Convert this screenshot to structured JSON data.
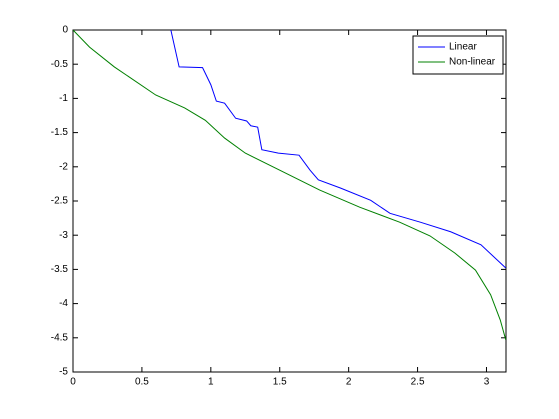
{
  "chart_data": {
    "type": "line",
    "series": [
      {
        "name": "Linear",
        "color": "#0000ff",
        "x": [
          0.71,
          0.77,
          0.94,
          1.0,
          1.04,
          1.1,
          1.18,
          1.26,
          1.29,
          1.34,
          1.37,
          1.49,
          1.64,
          1.72,
          1.78,
          1.94,
          2.16,
          2.3,
          2.52,
          2.74,
          2.96,
          3.14
        ],
        "values": [
          0,
          -0.54,
          -0.55,
          -0.8,
          -1.04,
          -1.07,
          -1.29,
          -1.33,
          -1.4,
          -1.42,
          -1.75,
          -1.8,
          -1.83,
          -2.05,
          -2.19,
          -2.31,
          -2.49,
          -2.68,
          -2.81,
          -2.95,
          -3.14,
          -3.48
        ]
      },
      {
        "name": "Non-linear",
        "color": "#008000",
        "x": [
          0,
          0.12,
          0.3,
          0.6,
          0.81,
          0.96,
          1.1,
          1.25,
          1.5,
          1.79,
          2.08,
          2.37,
          2.59,
          2.77,
          2.92,
          3.03,
          3.1,
          3.14
        ],
        "values": [
          0,
          -0.25,
          -0.54,
          -0.95,
          -1.14,
          -1.32,
          -1.58,
          -1.8,
          -2.05,
          -2.34,
          -2.59,
          -2.81,
          -3.01,
          -3.26,
          -3.51,
          -3.87,
          -4.24,
          -4.53
        ]
      }
    ],
    "xlim": [
      0,
      3.1416
    ],
    "xticks": [
      0,
      0.5,
      1,
      1.5,
      2,
      2.5,
      3
    ],
    "ylim": [
      -5,
      0
    ],
    "yticks": [
      0,
      -0.5,
      -1,
      -1.5,
      -2,
      -2.5,
      -3,
      -3.5,
      -4,
      -4.5,
      -5
    ],
    "legend": "northeast"
  }
}
